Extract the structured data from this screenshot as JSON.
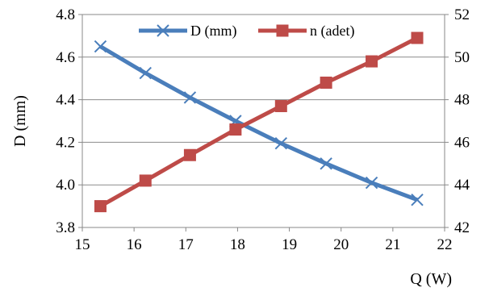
{
  "chart_data": {
    "type": "line",
    "title": "",
    "x": [
      15.35,
      16.22,
      17.08,
      17.96,
      18.84,
      19.71,
      20.59,
      21.47
    ],
    "xlabel": "Q (W)",
    "ylabel": "D (mm)",
    "y2label": "",
    "xlim": [
      15,
      22
    ],
    "ylim": [
      3.8,
      4.8
    ],
    "y2lim": [
      42,
      52
    ],
    "xticks": [
      "15",
      "16",
      "17",
      "18",
      "19",
      "20",
      "21",
      "22"
    ],
    "yticks": [
      "3.8",
      "4.0",
      "4.2",
      "4.4",
      "4.6",
      "4.8"
    ],
    "y2ticks": [
      "42",
      "44",
      "46",
      "48",
      "50",
      "52"
    ],
    "grid": "horizontal",
    "legend": "top",
    "series": [
      {
        "name": "D (mm)",
        "axis": "left",
        "color": "#4A7EBB",
        "marker": "x",
        "values": [
          4.65,
          4.525,
          4.41,
          4.3,
          4.195,
          4.1,
          4.01,
          3.93
        ]
      },
      {
        "name": "n (adet)",
        "axis": "right",
        "color": "#BE4B48",
        "marker": "square",
        "values": [
          43.0,
          44.2,
          45.4,
          46.6,
          47.7,
          48.8,
          49.8,
          50.9
        ]
      }
    ]
  }
}
